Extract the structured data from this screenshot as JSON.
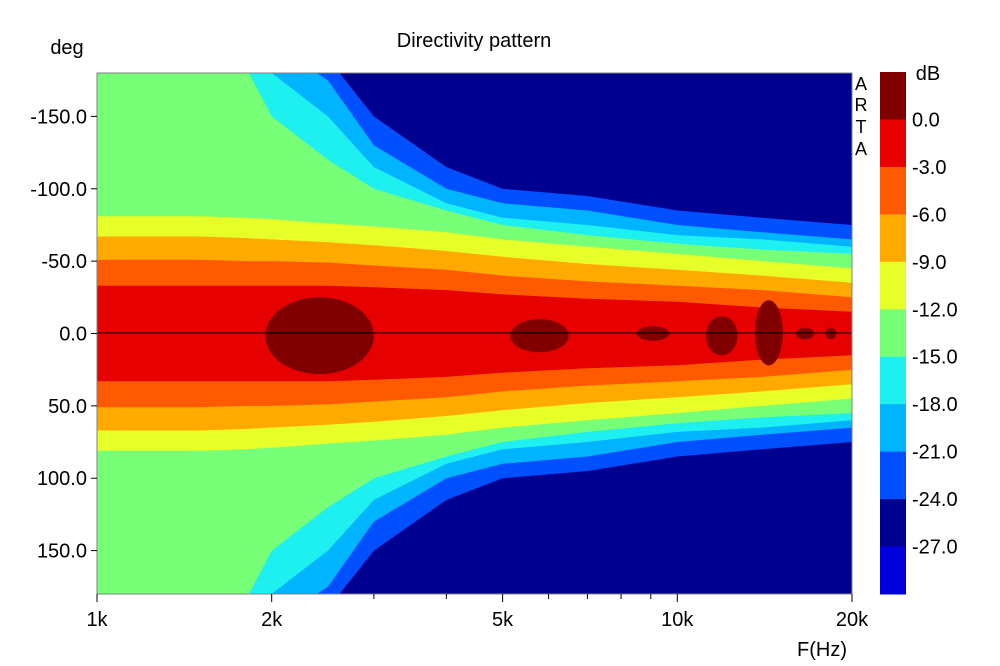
{
  "chart_data": {
    "type": "heatmap",
    "title": "Directivity pattern",
    "xlabel": "F(Hz)",
    "ylabel": "deg",
    "x_scale": "log",
    "xlim": [
      1000,
      20000
    ],
    "ylim": [
      -180,
      180
    ],
    "x_ticks": [
      {
        "value": 1000,
        "label": "1k"
      },
      {
        "value": 2000,
        "label": "2k"
      },
      {
        "value": 5000,
        "label": "5k"
      },
      {
        "value": 10000,
        "label": "10k"
      },
      {
        "value": 20000,
        "label": "20k"
      }
    ],
    "x_minor_ticks": [
      3000,
      4000,
      6000,
      7000,
      8000,
      9000
    ],
    "y_ticks": [
      {
        "value": -150,
        "label": "-150.0"
      },
      {
        "value": -100,
        "label": "-100.0"
      },
      {
        "value": -50,
        "label": "-50.0"
      },
      {
        "value": 0,
        "label": "0.0"
      },
      {
        "value": 50,
        "label": "50.0"
      },
      {
        "value": 100,
        "label": "100.0"
      },
      {
        "value": 150,
        "label": "150.0"
      }
    ],
    "colorbar": {
      "unit": "dB",
      "levels": [
        {
          "value": 0.0,
          "label": "0.0",
          "color": "#800000"
        },
        {
          "value": -3.0,
          "label": "-3.0",
          "color": "#e60000"
        },
        {
          "value": -6.0,
          "label": "-6.0",
          "color": "#ff5a00"
        },
        {
          "value": -9.0,
          "label": "-9.0",
          "color": "#ffaa00"
        },
        {
          "value": -12.0,
          "label": "-12.0",
          "color": "#e6ff28"
        },
        {
          "value": -15.0,
          "label": "-15.0",
          "color": "#78ff78"
        },
        {
          "value": -18.0,
          "label": "-18.0",
          "color": "#1ef0f0"
        },
        {
          "value": -21.0,
          "label": "-21.0",
          "color": "#00b4ff"
        },
        {
          "value": -24.0,
          "label": "-24.0",
          "color": "#0050ff"
        },
        {
          "value": -27.0,
          "label": "-27.0",
          "color": "#000090"
        }
      ],
      "bottom_color": "#0000dc"
    },
    "contours": {
      "frequencies": [
        1000,
        1500,
        1800,
        2000,
        2500,
        3000,
        4000,
        5000,
        7000,
        10000,
        14000,
        20000
      ],
      "boundaries_deg": [
        {
          "level": -27.0,
          "values": [
            200,
            200,
            200,
            200,
            200,
            180,
            130,
            115,
            110,
            100,
            95,
            90
          ]
        },
        {
          "level": -24.0,
          "values": [
            200,
            200,
            200,
            200,
            190,
            150,
            115,
            100,
            95,
            85,
            80,
            75
          ]
        },
        {
          "level": -21.0,
          "values": [
            200,
            200,
            200,
            200,
            175,
            130,
            100,
            90,
            85,
            75,
            70,
            65
          ]
        },
        {
          "level": -18.0,
          "values": [
            200,
            200,
            200,
            180,
            150,
            115,
            90,
            80,
            75,
            68,
            65,
            60
          ]
        },
        {
          "level": -15.0,
          "values": [
            200,
            200,
            185,
            150,
            120,
            100,
            85,
            75,
            68,
            62,
            58,
            55
          ]
        },
        {
          "level": -12.0,
          "values": [
            81,
            81,
            80,
            79,
            76,
            74,
            70,
            65,
            60,
            55,
            50,
            45
          ]
        },
        {
          "level": -9.0,
          "values": [
            67,
            67,
            66,
            65,
            63,
            61,
            57,
            53,
            48,
            44,
            40,
            35
          ]
        },
        {
          "level": -6.0,
          "values": [
            51,
            51,
            50,
            50,
            49,
            47,
            44,
            40,
            36,
            33,
            30,
            25
          ]
        },
        {
          "level": -3.0,
          "values": [
            33,
            33,
            33,
            33,
            33,
            32,
            30,
            27,
            24,
            22,
            18,
            15
          ]
        }
      ],
      "peaks_0dB": [
        {
          "f_from": 1950,
          "f_to": 3000,
          "deg_from": -25,
          "deg_to": 28
        },
        {
          "f_from": 5150,
          "f_to": 6500,
          "deg_from": -10,
          "deg_to": 13
        },
        {
          "f_from": 8500,
          "f_to": 9700,
          "deg_from": -5,
          "deg_to": 5
        },
        {
          "f_from": 11200,
          "f_to": 12700,
          "deg_from": -12,
          "deg_to": 15
        },
        {
          "f_from": 13600,
          "f_to": 15200,
          "deg_from": -23,
          "deg_to": 22
        },
        {
          "f_from": 16000,
          "f_to": 17200,
          "deg_from": -4,
          "deg_to": 4
        },
        {
          "f_from": 18000,
          "f_to": 18800,
          "deg_from": -4,
          "deg_to": 4
        }
      ]
    }
  },
  "watermark": "ARTA"
}
